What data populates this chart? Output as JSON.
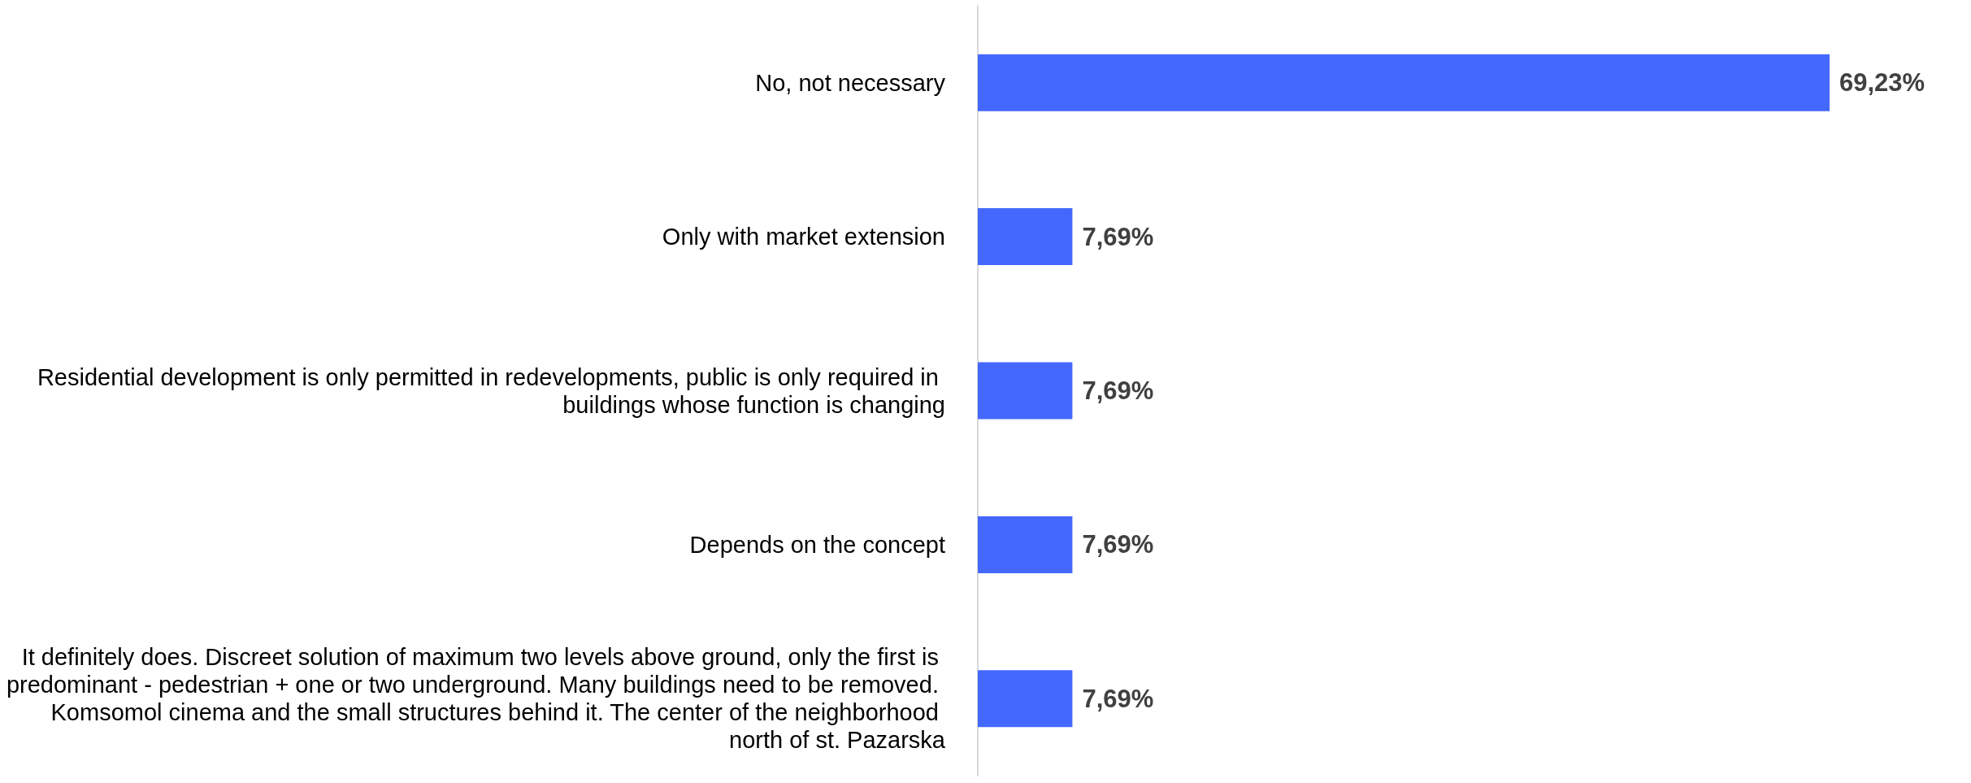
{
  "chart_data": {
    "type": "bar",
    "orientation": "horizontal",
    "categories": [
      "No, not necessary",
      "Only with market extension",
      "Residential development is only permitted in redevelopments, public is only required in buildings whose function is changing",
      "Depends on the concept",
      "It definitely does. Discreet solution of maximum two levels above ground, only the first is predominant - pedestrian + one or two underground. Many buildings need to be removed. Komsomol cinema and the small structures behind it. The center of the neighborhood north of st. Pazarska"
    ],
    "series": [
      {
        "color": "#4468fe",
        "values": [
          69.23,
          7.69,
          7.69,
          7.69,
          7.69
        ],
        "value_labels": [
          "69,23%",
          "7,69%",
          "7,69%",
          "7,69%",
          "7,69%"
        ]
      }
    ]
  }
}
